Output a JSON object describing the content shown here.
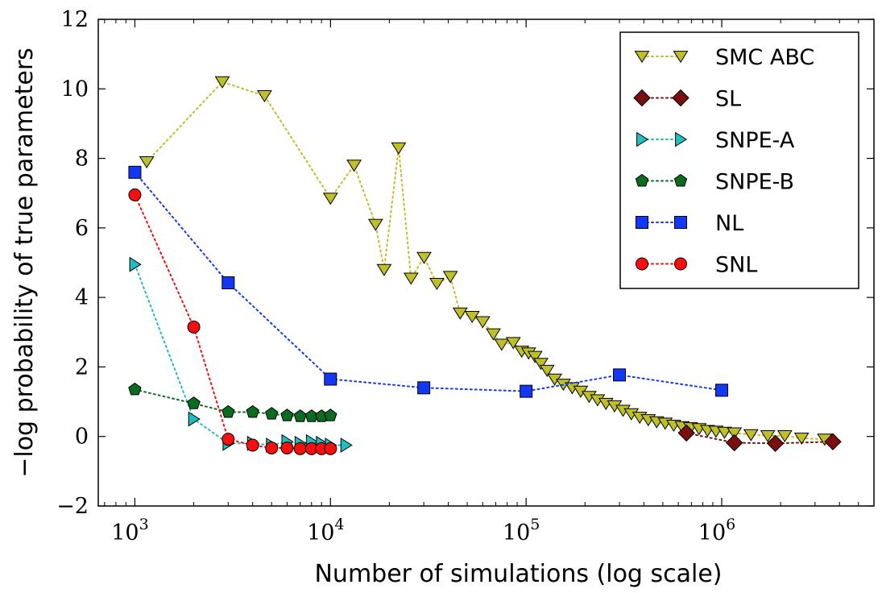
{
  "chart_data": {
    "type": "line",
    "title": "",
    "xlabel": "Number of simulations (log scale)",
    "ylabel": "−log probability of true parameters",
    "x_scale": "log",
    "xlim": [
      650,
      6000000
    ],
    "ylim": [
      -2,
      12
    ],
    "x_ticks": [
      {
        "value": 1000,
        "base": "10",
        "exp": "3"
      },
      {
        "value": 10000,
        "base": "10",
        "exp": "4"
      },
      {
        "value": 100000,
        "base": "10",
        "exp": "5"
      },
      {
        "value": 1000000,
        "base": "10",
        "exp": "6"
      }
    ],
    "y_ticks": [
      {
        "value": -2,
        "label": "−2"
      },
      {
        "value": 0,
        "label": "0"
      },
      {
        "value": 2,
        "label": "2"
      },
      {
        "value": 4,
        "label": "4"
      },
      {
        "value": 6,
        "label": "6"
      },
      {
        "value": 8,
        "label": "8"
      },
      {
        "value": 10,
        "label": "10"
      },
      {
        "value": 12,
        "label": "12"
      }
    ],
    "grid": false,
    "legend_position": "top-right",
    "series": [
      {
        "name": "SMC ABC",
        "color": "#bfbf2a",
        "marker": "triangle-down",
        "x": [
          1150,
          2800,
          4600,
          10000,
          13200,
          17000,
          18800,
          22300,
          25800,
          30100,
          35000,
          41000,
          46000,
          53000,
          60000,
          68000,
          75000,
          86000,
          95000,
          103000,
          111000,
          119000,
          128000,
          140000,
          155000,
          172000,
          190000,
          210000,
          232000,
          256000,
          283000,
          313000,
          345000,
          381000,
          421000,
          465000,
          514000,
          568000,
          627000,
          693000,
          766000,
          846000,
          935000,
          1034000,
          1160000,
          1410000,
          1720000,
          2100000,
          2560000,
          3360000
        ],
        "y": [
          7.9,
          10.2,
          9.8,
          6.85,
          7.8,
          6.1,
          4.8,
          8.3,
          4.55,
          5.15,
          4.4,
          4.6,
          3.55,
          3.45,
          3.3,
          2.95,
          2.65,
          2.7,
          2.45,
          2.4,
          2.3,
          2.1,
          1.9,
          1.65,
          1.5,
          1.4,
          1.3,
          1.15,
          1.05,
          0.95,
          0.88,
          0.75,
          0.65,
          0.55,
          0.48,
          0.42,
          0.38,
          0.32,
          0.28,
          0.25,
          0.22,
          0.17,
          0.15,
          0.12,
          0.1,
          0.05,
          0.02,
          0.02,
          -0.05,
          -0.08
        ]
      },
      {
        "name": "SL",
        "color": "#7a0f0f",
        "marker": "diamond",
        "x": [
          660000,
          1160000,
          1880000,
          3700000
        ],
        "y": [
          0.1,
          -0.18,
          -0.2,
          -0.15
        ]
      },
      {
        "name": "SNPE-A",
        "color": "#1fbfbf",
        "marker": "triangle-right",
        "x": [
          1000,
          2000,
          3000,
          4000,
          5000,
          6000,
          7000,
          8000,
          9000,
          10000,
          12000
        ],
        "y": [
          4.95,
          0.5,
          -0.2,
          -0.2,
          -0.25,
          -0.15,
          -0.2,
          -0.15,
          -0.2,
          -0.25,
          -0.25
        ]
      },
      {
        "name": "SNPE-B",
        "color": "#0b6b1f",
        "marker": "pentagon",
        "x": [
          1000,
          2000,
          3000,
          4000,
          5000,
          6000,
          7000,
          8000,
          9000,
          10000
        ],
        "y": [
          1.35,
          0.95,
          0.7,
          0.7,
          0.65,
          0.6,
          0.58,
          0.58,
          0.58,
          0.6
        ]
      },
      {
        "name": "NL",
        "color": "#1238f5",
        "marker": "square",
        "x": [
          1000,
          3000,
          10000,
          30000,
          100000,
          300000,
          1000000
        ],
        "y": [
          7.6,
          4.42,
          1.65,
          1.4,
          1.3,
          1.77,
          1.33
        ]
      },
      {
        "name": "SNL",
        "color": "#f50f0f",
        "marker": "circle",
        "x": [
          1000,
          2000,
          3000,
          4000,
          5000,
          6000,
          7000,
          8000,
          9000,
          10000
        ],
        "y": [
          6.95,
          3.15,
          -0.08,
          -0.25,
          -0.33,
          -0.33,
          -0.35,
          -0.35,
          -0.35,
          -0.35
        ]
      }
    ]
  }
}
